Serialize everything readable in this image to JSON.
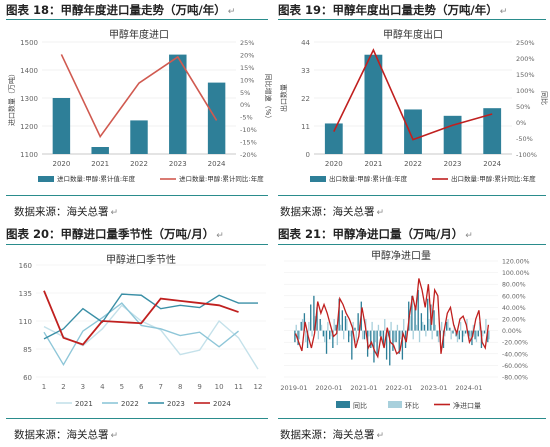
{
  "panels": [
    {
      "title": "图表 18：甲醇年度进口量走势（万吨/年）",
      "source": "数据来源：海关总署",
      "chart_data": {
        "type": "bar",
        "title": "甲醇年度进口",
        "categories": [
          "2020",
          "2021",
          "2022",
          "2023",
          "2024"
        ],
        "ylabel": "进口数量（万吨）",
        "y2label": "同比增速（%）",
        "ylim": [
          1100,
          1500
        ],
        "yticks": [
          1100,
          1200,
          1300,
          1400,
          1500
        ],
        "y2lim": [
          -20,
          25
        ],
        "y2ticks": [
          "25%",
          "20%",
          "15%",
          "10%",
          "5%",
          "0%",
          "-5%",
          "-10%",
          "-15%",
          "-20%"
        ],
        "series": [
          {
            "name": "进口数量:甲醇:累计值:年度",
            "type": "bar",
            "color": "#2e7f98",
            "values": [
              1300,
              1125,
              1220,
              1455,
              1355
            ]
          },
          {
            "name": "进口数量:甲醇:累计同比:年度",
            "type": "line",
            "axis": "right",
            "color": "#d05a50",
            "values": [
              20,
              -13,
              8.5,
              19,
              -6.5
            ]
          }
        ],
        "legend": "bottom"
      }
    },
    {
      "title": "图表 19：甲醇年度出口量走势（万吨/年）",
      "source": "数据来源：海关总署",
      "chart_data": {
        "type": "bar",
        "title": "甲醇年度出口",
        "categories": [
          "2020",
          "2021",
          "2022",
          "2023",
          "2024"
        ],
        "ylabel": "出口数量",
        "y2label": "同比",
        "ylim": [
          0,
          44
        ],
        "yticks": [
          0,
          11,
          22,
          33,
          44
        ],
        "y2lim": [
          -100,
          250
        ],
        "y2ticks": [
          "250%",
          "200%",
          "150%",
          "100%",
          "50%",
          "0%",
          "-50%",
          "-100%"
        ],
        "series": [
          {
            "name": "出口数量:甲醇:累计值:年度",
            "type": "bar",
            "color": "#2e7f98",
            "values": [
              12,
              39,
              17.5,
              15,
              18
            ]
          },
          {
            "name": "出口数量:甲醇:累计同比:年度",
            "type": "line",
            "axis": "right",
            "color": "#c0201f",
            "values": [
              -30,
              225,
              -55,
              -10,
              25
            ]
          }
        ],
        "legend": "bottom"
      }
    },
    {
      "title": "图表 20：甲醇进口量季节性（万吨/月）",
      "source": "数据来源：海关总署",
      "chart_data": {
        "type": "line",
        "title": "甲醇进口季节性",
        "x": [
          1,
          2,
          3,
          4,
          5,
          6,
          7,
          8,
          9,
          10,
          11,
          12
        ],
        "ylim": [
          60,
          160
        ],
        "yticks": [
          60,
          85,
          110,
          135,
          160
        ],
        "series": [
          {
            "name": "2021",
            "color": "#c4e1ea",
            "values": [
              105,
              96,
              88,
              103,
              124,
              110,
              102,
              80,
              84,
              110,
              95,
              67
            ]
          },
          {
            "name": "2022",
            "color": "#8ec6d8",
            "values": [
              100,
              71,
              101,
              113,
              126,
              106,
              103,
              97,
              100,
              87,
              101,
              null
            ]
          },
          {
            "name": "2023",
            "color": "#3a8fa6",
            "values": [
              94,
              103,
              121,
              109,
              134,
              133,
              121,
              124,
              122,
              133,
              126,
              126
            ]
          },
          {
            "name": "2024",
            "color": "#c0201f",
            "values": [
              137,
              95,
              89,
              110,
              109,
              108,
              130,
              128,
              126,
              124,
              118,
              null
            ]
          }
        ],
        "legend": "bottom"
      }
    },
    {
      "title": "图表 21：甲醇净进口量（万吨/月）",
      "source": "数据来源：海关总署",
      "chart_data": {
        "type": "bar",
        "title": "甲醇净进口量",
        "xticks": [
          "2019-01",
          "2020-01",
          "2021-01",
          "2022-01",
          "2023-01",
          "2024-01"
        ],
        "y2lim": [
          -80,
          120
        ],
        "y2ticks": [
          "120.00%",
          "100.00%",
          "80.00%",
          "60.00%",
          "40.00%",
          "20.00%",
          "0.00%",
          "-20.00%",
          "-40.00%",
          "-60.00%",
          "-80.00%"
        ],
        "series": [
          {
            "name": "同比",
            "type": "bar",
            "color": "#2e7f98",
            "values": [
              -20,
              -25,
              15,
              30,
              -30,
              45,
              60,
              40,
              20,
              -10,
              -40,
              -15,
              -30,
              10,
              55,
              35,
              25,
              -20,
              -50,
              5,
              30,
              50,
              -15,
              -45,
              -30,
              -55,
              -40,
              -10,
              -25,
              -50,
              -60,
              -35,
              -20,
              -40,
              -50,
              -30,
              50,
              60,
              40,
              70,
              30,
              10,
              55,
              45,
              35,
              -10,
              -20,
              -30,
              15,
              5,
              -5,
              -10,
              -15,
              -20,
              -5,
              -10,
              -25,
              -15,
              -10,
              -30,
              -5,
              -20
            ]
          },
          {
            "name": "环比",
            "type": "bar",
            "color": "#a8d0dc",
            "values": [
              10,
              -15,
              20,
              -20,
              15,
              -10,
              25,
              -15,
              10,
              -20,
              15,
              -10,
              20,
              -25,
              10,
              -15,
              20,
              -10,
              15,
              -20,
              10,
              -15,
              20,
              -10,
              15,
              -20,
              10,
              -15,
              20,
              -10,
              15,
              -20,
              10,
              -15,
              20,
              -10,
              25,
              -15,
              10,
              -20,
              15,
              -10,
              20,
              -15,
              10,
              -20,
              15,
              -10,
              20,
              -15,
              10,
              -20,
              15,
              -10,
              20,
              -15,
              10,
              -20,
              15,
              -10,
              20,
              -15
            ]
          },
          {
            "name": "净进口量",
            "type": "line",
            "color": "#c0201f",
            "values": [
              -5,
              -20,
              -35,
              15,
              -10,
              -30,
              -5,
              50,
              30,
              45,
              30,
              10,
              -10,
              -5,
              55,
              45,
              30,
              20,
              5,
              -30,
              -10,
              40,
              10,
              -30,
              -20,
              -35,
              -45,
              -10,
              -30,
              5,
              -20,
              -25,
              -40,
              -35,
              -5,
              -20,
              25,
              60,
              35,
              90,
              70,
              40,
              80,
              10,
              70,
              60,
              -40,
              0,
              30,
              40,
              10,
              -5,
              20,
              25,
              10,
              -20,
              -10,
              20,
              35,
              -20,
              -30,
              10
            ]
          }
        ],
        "legend": "bottom"
      }
    }
  ]
}
